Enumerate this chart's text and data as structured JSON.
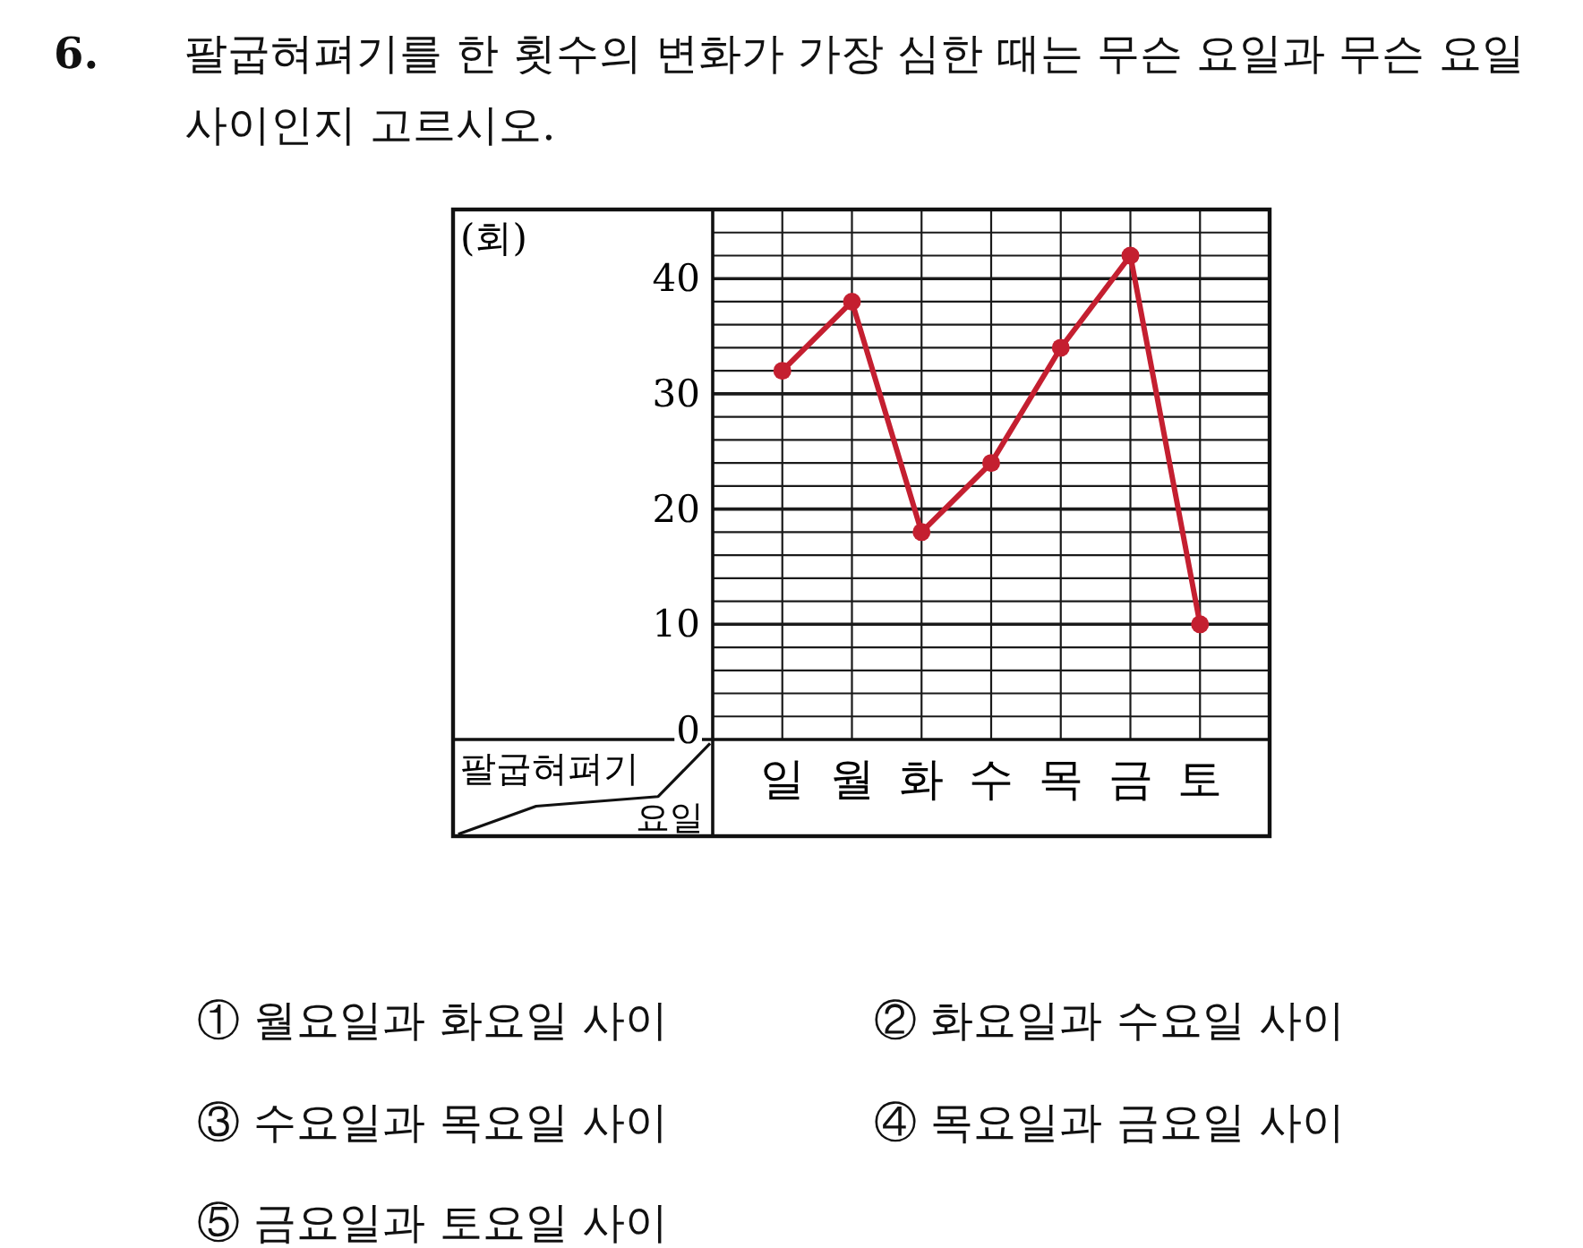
{
  "chart_data": {
    "type": "line",
    "title": "**6.** 팔굽혀펴기를 한 횟수의 변화가 가장 심한 때는 무슨 요일과 무슨 요일 사이인지 고르시오.",
    "xlabel": "요일",
    "ylabel": "팔굽혀펴기",
    "annotations": [
      "(회)",
      "① 월요일과 화요일 사이",
      "② 화요일과 수요일 사이",
      "③ 수요일과 목요일 사이",
      "④ 목요일과 금요일 사이",
      "⑤ 금요일과 토요일 사이"
    ],
    "categories": [
      "일",
      "월",
      "화",
      "수",
      "목",
      "금",
      "토"
    ],
    "series": [
      {
        "color": "#c41f30",
        "values": [
          32,
          38,
          18,
          24,
          34,
          42,
          10
        ]
      }
    ],
    "ylim": [
      0,
      46
    ],
    "yticks": [
      0,
      {
        "value": 2,
        "label": null
      },
      {
        "value": 4,
        "label": null
      },
      {
        "value": 6,
        "label": null
      },
      {
        "value": 8,
        "label": null
      },
      10,
      {
        "value": 12,
        "label": null
      },
      {
        "value": 14,
        "label": null
      },
      {
        "value": 16,
        "label": null
      },
      {
        "value": 18,
        "label": null
      },
      20,
      {
        "value": 22,
        "label": null
      },
      {
        "value": 24,
        "label": null
      },
      {
        "value": 26,
        "label": null
      },
      {
        "value": 28,
        "label": null
      },
      30,
      {
        "value": 32,
        "label": null
      },
      {
        "value": 34,
        "label": null
      },
      {
        "value": 36,
        "label": null
      },
      {
        "value": 38,
        "label": null
      },
      40,
      {
        "value": 42,
        "label": null
      },
      {
        "value": 44,
        "label": null
      }
    ],
    "grid": true,
    "marker": "circle",
    "line_style": "solid"
  }
}
